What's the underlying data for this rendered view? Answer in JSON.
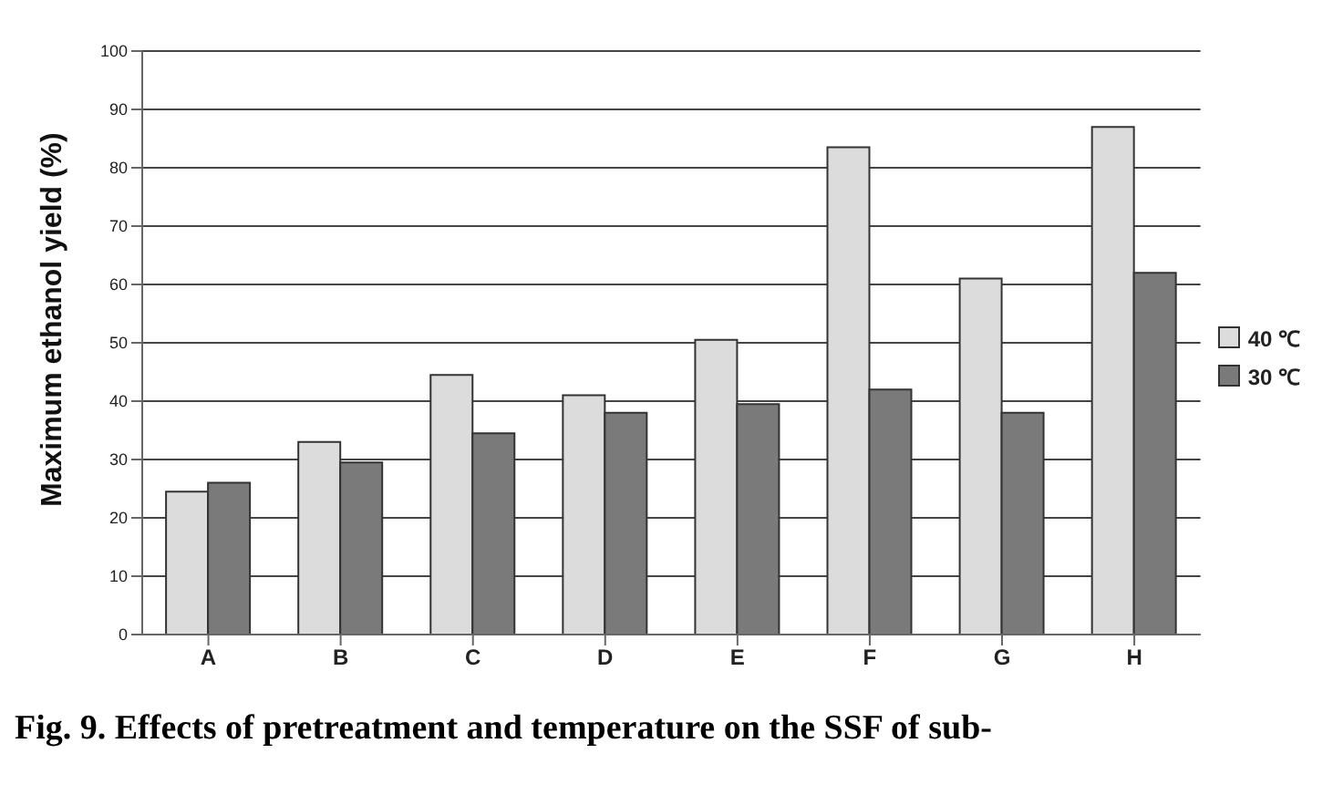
{
  "chart_data": {
    "type": "bar",
    "ylabel": "Maximum ethanol yield (%)",
    "categories": [
      "A",
      "B",
      "C",
      "D",
      "E",
      "F",
      "G",
      "H"
    ],
    "series": [
      {
        "name": "40 ℃",
        "color": "#dcdcdc",
        "values": [
          24.5,
          33,
          44.5,
          41,
          50.5,
          83.5,
          61,
          87
        ]
      },
      {
        "name": "30 ℃",
        "color": "#7a7a7a",
        "values": [
          26,
          29.5,
          34.5,
          38,
          39.5,
          42,
          38,
          62
        ]
      }
    ],
    "ylim": [
      0,
      100
    ],
    "yticks": [
      0,
      10,
      20,
      30,
      40,
      50,
      60,
      70,
      80,
      90,
      100
    ],
    "grid": "y",
    "legend": "right",
    "annotations": [
      "Fig. 9. Effects of pretreatment and temperature on the SSF of sub-"
    ]
  }
}
